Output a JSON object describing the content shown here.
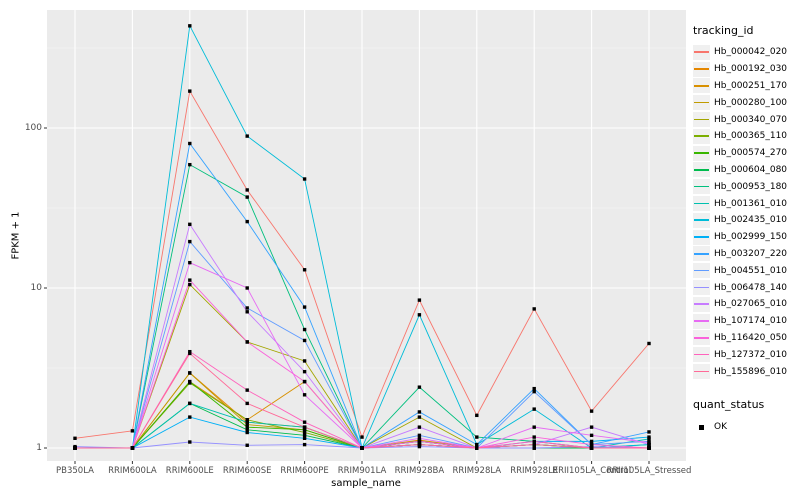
{
  "colors": {
    "panel_bg": "#EBEBEB",
    "grid_major": "#FFFFFF",
    "grid_minor": "#F7F7F7",
    "tick_label": "#4D4D4D",
    "marker": "#000000",
    "legend_key_bg": "#F0F0F0"
  },
  "legend": {
    "tracking_title": "tracking_id",
    "quant_title": "quant_status",
    "quant_items": [
      {
        "label": "OK",
        "symbol": "black-square"
      }
    ]
  },
  "chart_data": {
    "type": "line",
    "title": "",
    "xlabel": "sample_name",
    "ylabel": "FPKM + 1",
    "yscale": "log10",
    "yticks": [
      1,
      10,
      100
    ],
    "ytick_labels": [
      "1",
      "10",
      "100"
    ],
    "yminor": [
      3.162,
      31.62,
      316.2
    ],
    "ylim": [
      1,
      546
    ],
    "grid": true,
    "legend_position": "right",
    "point_shape": "filled-black-square",
    "categories": [
      "PB350LA",
      "RRIM600LA",
      "RRIM600LE",
      "RRIM600SE",
      "RRIM600PE",
      "RRIM901LA",
      "RRIM928BA",
      "RRIM928LA",
      "RRIM928LE",
      "RRII105LA_Control",
      "RRII105LA_Stressed"
    ],
    "series": [
      {
        "name": "Hb_000042_020",
        "color": "#F8766D",
        "values": [
          1.15,
          1.28,
          170,
          41,
          13,
          1.17,
          8.4,
          1.6,
          7.4,
          1.7,
          4.5
        ]
      },
      {
        "name": "Hb_000192_030",
        "color": "#E58700",
        "values": [
          1,
          1,
          2.95,
          1.45,
          1.35,
          1,
          1.1,
          1,
          1,
          1,
          1
        ]
      },
      {
        "name": "Hb_000251_170",
        "color": "#D89000",
        "values": [
          1,
          1,
          2.6,
          1.5,
          2.6,
          1,
          1.12,
          1,
          1.05,
          1,
          1
        ]
      },
      {
        "name": "Hb_000280_100",
        "color": "#C09B00",
        "values": [
          1,
          1,
          2.94,
          1.4,
          1.3,
          1,
          1.05,
          1,
          1,
          1,
          1
        ]
      },
      {
        "name": "Hb_000340_070",
        "color": "#A3A500",
        "values": [
          1,
          1,
          10.5,
          4.6,
          3.5,
          1,
          1.56,
          1,
          1.05,
          1,
          1
        ]
      },
      {
        "name": "Hb_000365_110",
        "color": "#7CAE00",
        "values": [
          1,
          1,
          2.55,
          1.5,
          1.25,
          1,
          1.05,
          1,
          1,
          1,
          1
        ]
      },
      {
        "name": "Hb_000574_270",
        "color": "#39B600",
        "values": [
          1,
          1,
          2.6,
          1.35,
          1.3,
          1,
          1.1,
          1,
          1.05,
          1,
          1
        ]
      },
      {
        "name": "Hb_000604_080",
        "color": "#00BB4E",
        "values": [
          1,
          1,
          1.9,
          1.3,
          1.2,
          1,
          1.05,
          1,
          1,
          1,
          1
        ]
      },
      {
        "name": "Hb_000953_180",
        "color": "#00BF7D",
        "values": [
          1,
          1,
          59,
          37,
          5.5,
          1,
          2.4,
          1.17,
          1.1,
          1,
          1.05
        ]
      },
      {
        "name": "Hb_001361_010",
        "color": "#00C0AF",
        "values": [
          1,
          1,
          1.9,
          1.45,
          1.35,
          1,
          1.1,
          1,
          1.05,
          1,
          1.14
        ]
      },
      {
        "name": "Hb_002435_010",
        "color": "#00BCD8",
        "values": [
          1,
          1,
          435,
          89,
          48,
          1,
          6.8,
          1.05,
          1.75,
          1,
          1.05
        ]
      },
      {
        "name": "Hb_002999_150",
        "color": "#00B0F6",
        "values": [
          1,
          1,
          1.56,
          1.25,
          1.15,
          1,
          1.05,
          1,
          1.1,
          1.1,
          1.17
        ]
      },
      {
        "name": "Hb_003207_220",
        "color": "#35A2FF",
        "values": [
          1,
          1,
          80,
          26,
          7.6,
          1,
          1.68,
          1.05,
          2.35,
          1.05,
          1.26
        ]
      },
      {
        "name": "Hb_004551_010",
        "color": "#619CFF",
        "values": [
          1,
          1,
          19.5,
          7.5,
          4.7,
          1,
          1.2,
          1,
          2.25,
          1.05,
          1.1
        ]
      },
      {
        "name": "Hb_006478_140",
        "color": "#9590FF",
        "values": [
          1.02,
          1,
          1.09,
          1.04,
          1.05,
          1,
          1.02,
          1,
          1,
          1.02,
          1
        ]
      },
      {
        "name": "Hb_027065_010",
        "color": "#C77CFF",
        "values": [
          1,
          1,
          25,
          7.1,
          3.0,
          1,
          1.35,
          1,
          1.05,
          1.35,
          1.05
        ]
      },
      {
        "name": "Hb_107174_010",
        "color": "#E76BF3",
        "values": [
          1,
          1,
          14.4,
          10,
          2.15,
          1,
          1.15,
          1,
          1.35,
          1.2,
          1.08
        ]
      },
      {
        "name": "Hb_116420_050",
        "color": "#FA62DB",
        "values": [
          1,
          1,
          11.2,
          4.6,
          2.6,
          1,
          1.1,
          1,
          1.17,
          1.05,
          1
        ]
      },
      {
        "name": "Hb_127372_010",
        "color": "#FF62BC",
        "values": [
          1,
          1,
          4.0,
          2.3,
          1.45,
          1,
          1.05,
          1,
          1.1,
          1,
          1
        ]
      },
      {
        "name": "Hb_155896_010",
        "color": "#FF6A98",
        "values": [
          1,
          1,
          3.9,
          1.9,
          1.35,
          1,
          1.05,
          1,
          1.05,
          1,
          1
        ]
      }
    ]
  },
  "layout_values": {
    "note": "point markers are black squares; quant_status OK for all points"
  }
}
